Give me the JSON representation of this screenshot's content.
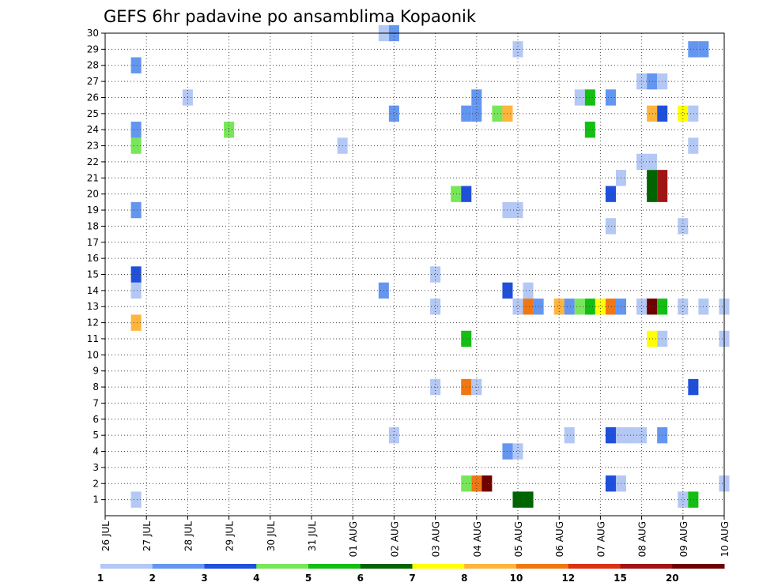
{
  "chart_data": {
    "type": "heatmap",
    "title": "GEFS 6hr padavine po ansamblima Kopaonik",
    "xlabel": "",
    "ylabel": "",
    "x_tick_labels": [
      "26 JUL",
      "27 JUL",
      "28 JUL",
      "29 JUL",
      "30 JUL",
      "31 JUL",
      "01 AUG",
      "02 AUG",
      "03 AUG",
      "04 AUG",
      "05 AUG",
      "06 AUG",
      "07 AUG",
      "08 AUG",
      "09 AUG",
      "10 AUG"
    ],
    "y_tick_labels": [
      "1",
      "2",
      "3",
      "4",
      "5",
      "6",
      "7",
      "8",
      "9",
      "10",
      "11",
      "12",
      "13",
      "14",
      "15",
      "16",
      "17",
      "18",
      "19",
      "20",
      "21",
      "22",
      "23",
      "24",
      "25",
      "26",
      "27",
      "28",
      "29",
      "30"
    ],
    "time_steps_per_day": 4,
    "ylim": [
      0,
      30
    ],
    "grid": true,
    "colorbar": {
      "levels": [
        "1",
        "2",
        "3",
        "4",
        "5",
        "6",
        "7",
        "8",
        "10",
        "12",
        "15",
        "20"
      ],
      "colors": [
        "#b4c8f5",
        "#6496f0",
        "#1e50dc",
        "#78e65a",
        "#14be14",
        "#006400",
        "#ffff00",
        "#ffb43c",
        "#f07814",
        "#dc3214",
        "#a01414",
        "#6e0000"
      ]
    },
    "cells": [
      {
        "day": 0.75,
        "member": 1,
        "value": 1
      },
      {
        "day": 0.75,
        "member": 12,
        "value": 8
      },
      {
        "day": 0.75,
        "member": 14,
        "value": 1
      },
      {
        "day": 0.75,
        "member": 15,
        "value": 3
      },
      {
        "day": 0.75,
        "member": 19,
        "value": 2
      },
      {
        "day": 0.75,
        "member": 23,
        "value": 4
      },
      {
        "day": 0.75,
        "member": 24,
        "value": 2
      },
      {
        "day": 0.75,
        "member": 28,
        "value": 2
      },
      {
        "day": 2.0,
        "member": 26,
        "value": 1
      },
      {
        "day": 3.0,
        "member": 24,
        "value": 4
      },
      {
        "day": 5.75,
        "member": 23,
        "value": 1
      },
      {
        "day": 6.75,
        "member": 14,
        "value": 2
      },
      {
        "day": 6.75,
        "member": 30,
        "value": 1
      },
      {
        "day": 7.0,
        "member": 5,
        "value": 1
      },
      {
        "day": 7.0,
        "member": 25,
        "value": 2
      },
      {
        "day": 7.0,
        "member": 30,
        "value": 2
      },
      {
        "day": 8.0,
        "member": 8,
        "value": 1
      },
      {
        "day": 8.0,
        "member": 13,
        "value": 1
      },
      {
        "day": 8.0,
        "member": 15,
        "value": 1
      },
      {
        "day": 8.5,
        "member": 20,
        "value": 4
      },
      {
        "day": 8.75,
        "member": 2,
        "value": 4
      },
      {
        "day": 8.75,
        "member": 8,
        "value": 10
      },
      {
        "day": 8.75,
        "member": 11,
        "value": 5
      },
      {
        "day": 8.75,
        "member": 20,
        "value": 3
      },
      {
        "day": 8.75,
        "member": 25,
        "value": 2
      },
      {
        "day": 9.0,
        "member": 2,
        "value": 10
      },
      {
        "day": 9.0,
        "member": 8,
        "value": 1
      },
      {
        "day": 9.0,
        "member": 25,
        "value": 2
      },
      {
        "day": 9.0,
        "member": 26,
        "value": 2
      },
      {
        "day": 9.25,
        "member": 2,
        "value": 20
      },
      {
        "day": 9.5,
        "member": 25,
        "value": 4
      },
      {
        "day": 9.75,
        "member": 25,
        "value": 8
      },
      {
        "day": 9.75,
        "member": 4,
        "value": 2
      },
      {
        "day": 9.75,
        "member": 14,
        "value": 3
      },
      {
        "day": 9.75,
        "member": 19,
        "value": 1
      },
      {
        "day": 10.0,
        "member": 1,
        "value": 6
      },
      {
        "day": 10.0,
        "member": 4,
        "value": 1
      },
      {
        "day": 10.0,
        "member": 13,
        "value": 1
      },
      {
        "day": 10.0,
        "member": 19,
        "value": 1
      },
      {
        "day": 10.0,
        "member": 29,
        "value": 1
      },
      {
        "day": 10.25,
        "member": 1,
        "value": 6
      },
      {
        "day": 10.25,
        "member": 13,
        "value": 10
      },
      {
        "day": 10.25,
        "member": 14,
        "value": 1
      },
      {
        "day": 10.5,
        "member": 13,
        "value": 2
      },
      {
        "day": 11.0,
        "member": 13,
        "value": 8
      },
      {
        "day": 11.25,
        "member": 5,
        "value": 1
      },
      {
        "day": 11.25,
        "member": 13,
        "value": 2
      },
      {
        "day": 11.5,
        "member": 13,
        "value": 4
      },
      {
        "day": 11.5,
        "member": 26,
        "value": 1
      },
      {
        "day": 11.75,
        "member": 13,
        "value": 5
      },
      {
        "day": 11.75,
        "member": 24,
        "value": 5
      },
      {
        "day": 11.75,
        "member": 26,
        "value": 5
      },
      {
        "day": 12.0,
        "member": 13,
        "value": 7
      },
      {
        "day": 12.25,
        "member": 2,
        "value": 3
      },
      {
        "day": 12.25,
        "member": 5,
        "value": 3
      },
      {
        "day": 12.25,
        "member": 13,
        "value": 10
      },
      {
        "day": 12.25,
        "member": 18,
        "value": 1
      },
      {
        "day": 12.25,
        "member": 20,
        "value": 3
      },
      {
        "day": 12.25,
        "member": 26,
        "value": 2
      },
      {
        "day": 12.5,
        "member": 2,
        "value": 1
      },
      {
        "day": 12.5,
        "member": 5,
        "value": 1
      },
      {
        "day": 12.5,
        "member": 13,
        "value": 2
      },
      {
        "day": 12.5,
        "member": 21,
        "value": 1
      },
      {
        "day": 12.75,
        "member": 5,
        "value": 1
      },
      {
        "day": 13.0,
        "member": 5,
        "value": 1
      },
      {
        "day": 13.0,
        "member": 13,
        "value": 1
      },
      {
        "day": 13.0,
        "member": 22,
        "value": 1
      },
      {
        "day": 13.0,
        "member": 27,
        "value": 1
      },
      {
        "day": 13.25,
        "member": 13,
        "value": 20
      },
      {
        "day": 13.25,
        "member": 11,
        "value": 7
      },
      {
        "day": 13.25,
        "member": 20,
        "value": 6
      },
      {
        "day": 13.25,
        "member": 21,
        "value": 6
      },
      {
        "day": 13.25,
        "member": 22,
        "value": 1
      },
      {
        "day": 13.25,
        "member": 25,
        "value": 8
      },
      {
        "day": 13.25,
        "member": 27,
        "value": 2
      },
      {
        "day": 13.5,
        "member": 5,
        "value": 2
      },
      {
        "day": 13.5,
        "member": 11,
        "value": 1
      },
      {
        "day": 13.5,
        "member": 13,
        "value": 5
      },
      {
        "day": 13.5,
        "member": 20,
        "value": 15
      },
      {
        "day": 13.5,
        "member": 21,
        "value": 15
      },
      {
        "day": 13.5,
        "member": 25,
        "value": 3
      },
      {
        "day": 13.5,
        "member": 27,
        "value": 1
      },
      {
        "day": 14.0,
        "member": 1,
        "value": 1
      },
      {
        "day": 14.0,
        "member": 13,
        "value": 1
      },
      {
        "day": 14.0,
        "member": 18,
        "value": 1
      },
      {
        "day": 14.0,
        "member": 25,
        "value": 7
      },
      {
        "day": 14.25,
        "member": 1,
        "value": 5
      },
      {
        "day": 14.25,
        "member": 8,
        "value": 3
      },
      {
        "day": 14.25,
        "member": 23,
        "value": 1
      },
      {
        "day": 14.25,
        "member": 25,
        "value": 1
      },
      {
        "day": 14.25,
        "member": 29,
        "value": 2
      },
      {
        "day": 14.5,
        "member": 13,
        "value": 1
      },
      {
        "day": 14.5,
        "member": 29,
        "value": 2
      },
      {
        "day": 15.0,
        "member": 2,
        "value": 1
      },
      {
        "day": 15.0,
        "member": 11,
        "value": 1
      },
      {
        "day": 15.0,
        "member": 13,
        "value": 1
      }
    ]
  }
}
